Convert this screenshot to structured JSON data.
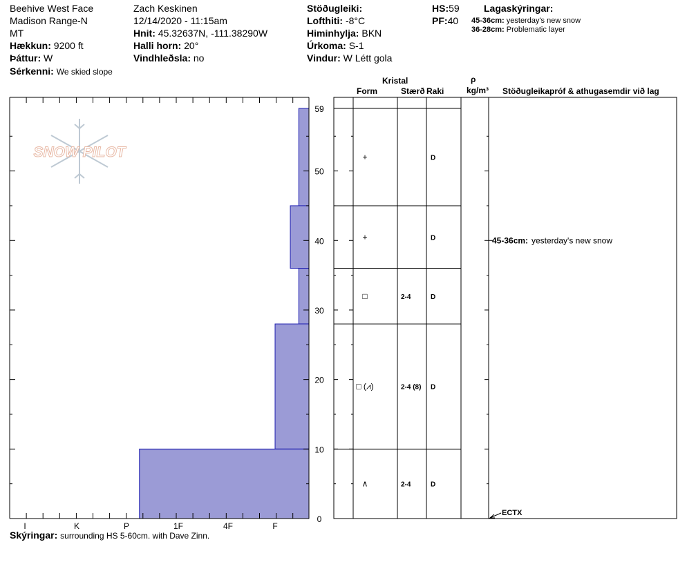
{
  "header": {
    "location": "Beehive West Face",
    "range": "Madison Range-N",
    "state": "MT",
    "elevation_label": "Hækkun:",
    "elevation": "9200 ft",
    "aspect_label": "Þáttur:",
    "aspect": "W",
    "features_label": "Sérkenni:",
    "features": "We skied slope",
    "observer": "Zach Keskinen",
    "datetime": "12/14/2020 - 11:15am",
    "coords_label": "Hnit:",
    "coords": "45.32637N, -111.38290W",
    "slope_label": "Halli horn:",
    "slope": "20°",
    "wind_loading_label": "Vindhleðsla:",
    "wind_loading": "no",
    "stability_label": "Stöðugleiki:",
    "air_temp_label": "Lofthiti:",
    "air_temp": "-8°C",
    "sky_label": "Himinhylja:",
    "sky": "BKN",
    "precip_label": "Úrkoma:",
    "precip": "S-1",
    "wind_label": "Vindur:",
    "wind": "W Létt gola",
    "hs_label": "HS:",
    "hs": "59",
    "pf_label": "PF:",
    "pf": "40",
    "legend_title": "Lagaskýringar:",
    "legend": [
      {
        "range": "45-36cm:",
        "text": "yesterday's new snow"
      },
      {
        "range": "36-28cm:",
        "text": "Problematic layer"
      }
    ]
  },
  "logo_text": "SNOW PILOT",
  "table_headers": {
    "crystal": "Kristal",
    "form": "Form",
    "size": "Stærð",
    "moisture": "Raki",
    "rho": "ρ",
    "density_unit": "kg/m³",
    "tests": "Stöðugleikapróf & athugasemdir við lag"
  },
  "layers": [
    {
      "top": 59,
      "bottom": 45,
      "form": "+",
      "size": "",
      "moisture": "D"
    },
    {
      "top": 45,
      "bottom": 36,
      "form": "+",
      "size": "",
      "moisture": "D"
    },
    {
      "top": 36,
      "bottom": 28,
      "form": "□",
      "size": "2-4",
      "moisture": "D"
    },
    {
      "top": 28,
      "bottom": 10,
      "form": "□ (⩘)",
      "size": "2-4 (8)",
      "moisture": "D"
    },
    {
      "top": 10,
      "bottom": 0,
      "form": "∧",
      "size": "2-4",
      "moisture": "D"
    }
  ],
  "layer_comments": [
    {
      "depth": 40,
      "range": "45-36cm:",
      "text": "yesterday's new snow"
    }
  ],
  "test_marker": {
    "depth": 0,
    "label": "ECTX"
  },
  "comments_label": "Skýringar:",
  "comments": "surrounding HS 5-60cm. with Dave Zinn.",
  "chart_data": {
    "type": "bar",
    "orientation": "horizontal-step",
    "title": "",
    "xlabel": "",
    "ylabel": "",
    "x_categories": [
      "I",
      "K",
      "P",
      "1F",
      "4F",
      "F"
    ],
    "y_ticks": [
      "0",
      "10",
      "20",
      "30",
      "40",
      "50",
      "59"
    ],
    "ylim": [
      0,
      59
    ],
    "color": "#9b9bd6",
    "hardness_profile": [
      {
        "top": 59,
        "bottom": 45,
        "hardness_index": 0.3
      },
      {
        "top": 45,
        "bottom": 36,
        "hardness_index": 0.55
      },
      {
        "top": 36,
        "bottom": 28,
        "hardness_index": 0.3
      },
      {
        "top": 28,
        "bottom": 10,
        "hardness_index": 1.0
      },
      {
        "top": 10,
        "bottom": 0,
        "hardness_index": 3.75
      }
    ]
  }
}
